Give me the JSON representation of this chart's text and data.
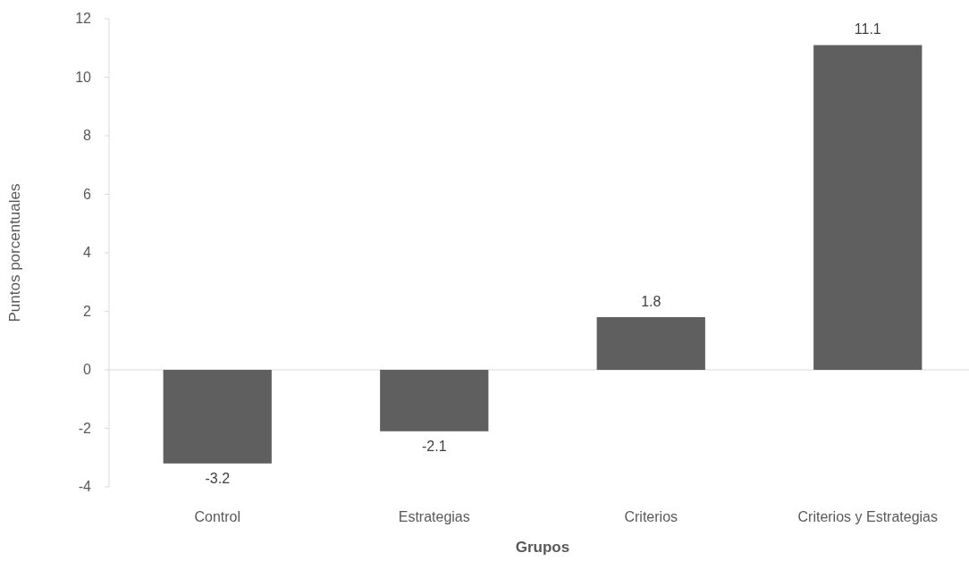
{
  "chart_data": {
    "type": "bar",
    "xlabel": "Grupos",
    "ylabel": "Puntos porcentuales",
    "categories": [
      "Control",
      "Estrategias",
      "Criterios",
      "Criterios y Estrategias"
    ],
    "values": [
      -3.2,
      -2.1,
      1.8,
      11.1
    ],
    "color": "#5f5f5f",
    "ylim": [
      -4,
      12
    ],
    "yticks": [
      -4,
      -2,
      0,
      2,
      4,
      6,
      8,
      10,
      12
    ],
    "data_labels": true
  }
}
